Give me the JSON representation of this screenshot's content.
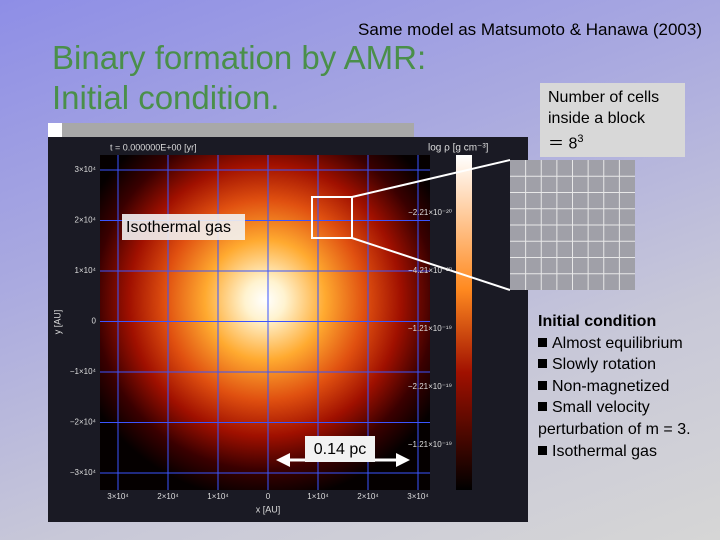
{
  "header": {
    "note": "Same model as Matsumoto & Hanawa (2003)",
    "title_lines": [
      "Binary formation by AMR:",
      "Initial condition."
    ]
  },
  "callout": {
    "lines": [
      "Number of cells",
      "inside a block"
    ],
    "equation": "＝ 8",
    "exponent": "3"
  },
  "figure": {
    "time_label": "t = 0.000000E+00 [yr]",
    "colorbar_label": "log ρ [g cm⁻³]",
    "y_axis_label": "y [AU]",
    "x_axis_label": "x [AU]",
    "y_ticks": [
      "3×10⁴",
      "2×10⁴",
      "1×10⁴",
      "0",
      "−1×10⁴",
      "−2×10⁴",
      "−3×10⁴"
    ],
    "x_ticks": [
      "3×10⁴",
      "2×10⁴",
      "1×10⁴",
      "0",
      "1×10⁴",
      "2×10⁴",
      "3×10⁴"
    ],
    "colorbar_ticks": [
      "−2.21×10⁻²⁰",
      "−4.21×10⁻²⁰",
      "−1.21×10⁻¹⁹",
      "−2.21×10⁻¹⁹",
      "−1.21×10⁻¹⁹"
    ],
    "annotation": "Isothermal gas",
    "scale_label": "0.14 pc"
  },
  "notes": {
    "heading": "Initial condition",
    "items": [
      "Almost equilibrium",
      "Slowly rotation",
      "Non-magnetized",
      "Small velocity perturbation of m = 3.",
      "Isothermal gas"
    ]
  }
}
